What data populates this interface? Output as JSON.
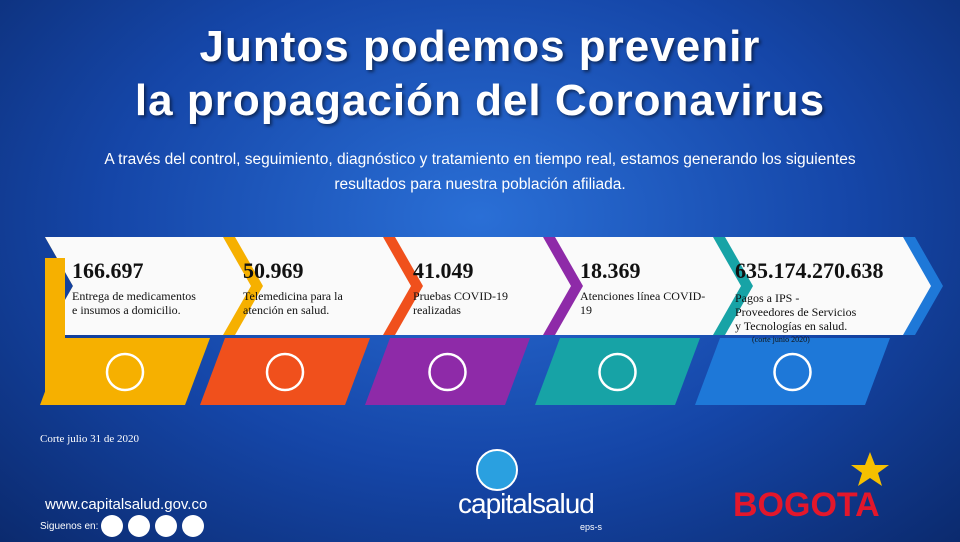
{
  "header": {
    "title_line1": "Juntos podemos prevenir",
    "title_line2": "la propagación del Coronavirus",
    "subtitle": "A través del control, seguimiento, diagnóstico y tratamiento en tiempo real, estamos generando los siguientes resultados para nuestra población afiliada."
  },
  "items": [
    {
      "value": "166.697",
      "label": "Entrega de medicamentos e insumos a domicilio."
    },
    {
      "value": "50.969",
      "label": "Telemedicina para la atención en salud."
    },
    {
      "value": "41.049",
      "label": "Pruebas COVID-19 realizadas"
    },
    {
      "value": "18.369",
      "label": "Atenciones línea COVID-19"
    },
    {
      "value": "635.174.270.638",
      "label": "Pagos a IPS - Proveedores de Servicios y Tecnologías en salud.",
      "note": "(corte junio 2020)"
    }
  ],
  "cutoff": "Corte julio  31 de 2020",
  "footer": {
    "website": "www.capitalsalud.gov.co",
    "follow": "Siguenos en:",
    "logo": "capitalsalud",
    "logo_sub": "eps-s",
    "partner": "BOGOTA"
  }
}
